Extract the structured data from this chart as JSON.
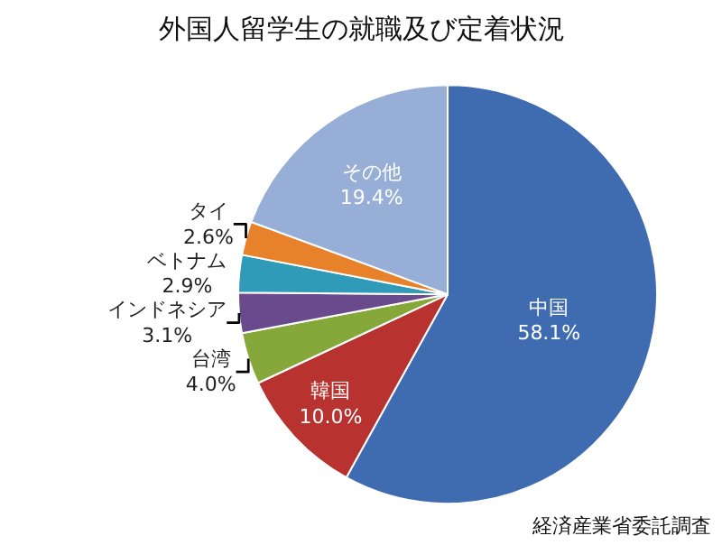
{
  "chart_data": {
    "type": "pie",
    "title": "外国人留学生の就職及び定着状況",
    "categories": [
      "中国",
      "韓国",
      "台湾",
      "インドネシア",
      "ベトナム",
      "タイ",
      "その他"
    ],
    "values": [
      58.1,
      10.0,
      4.0,
      3.1,
      2.9,
      2.6,
      19.4
    ],
    "value_labels": [
      "58.1%",
      "10.0%",
      "4.0%",
      "3.1%",
      "2.9%",
      "2.6%",
      "19.4%"
    ],
    "colors": [
      "#3f6cb0",
      "#b8322f",
      "#86a83a",
      "#694a8c",
      "#2f9bb8",
      "#e8822a",
      "#97aed6"
    ],
    "annotations": [
      "経済産業省委託調査"
    ],
    "legend": false
  }
}
